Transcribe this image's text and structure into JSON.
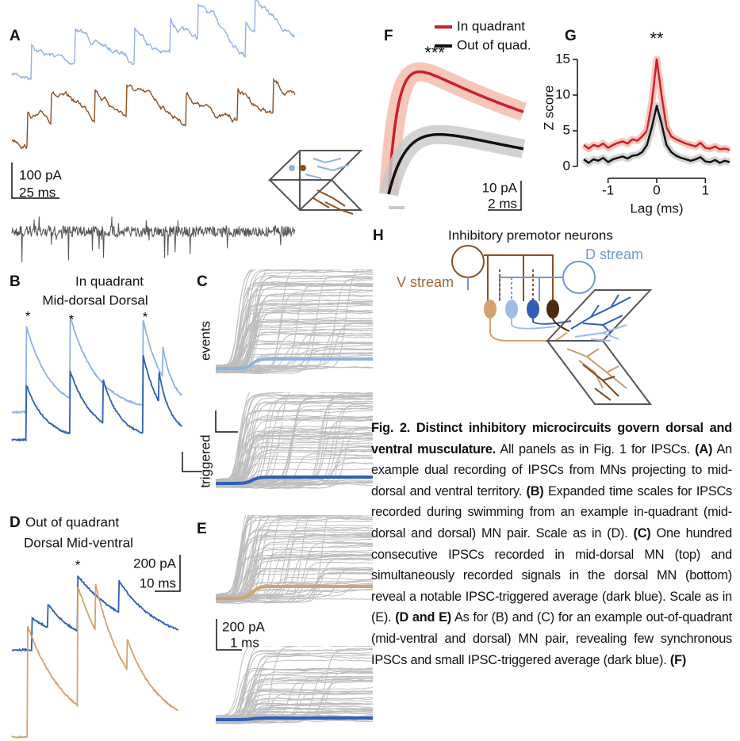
{
  "panel_labels": [
    "A",
    "B",
    "C",
    "D",
    "E",
    "F",
    "G",
    "H"
  ],
  "panel_a": {
    "scale_y": "100 pA",
    "scale_x": "25 ms"
  },
  "panel_b": {
    "title": "In quadrant",
    "subtitle": "Mid-dorsal Dorsal",
    "markers": [
      "*",
      "*",
      "*"
    ]
  },
  "panel_c": {
    "top_label": "events",
    "bottom_label": "triggered"
  },
  "panel_d": {
    "title": "Out of quadrant",
    "subtitle": "Dorsal Mid-ventral",
    "marker": "*",
    "scale_y": "200 pA",
    "scale_x": "10 ms"
  },
  "panel_e": {
    "scale_y": "200 pA",
    "scale_x": "1 ms"
  },
  "panel_f": {
    "significance": "***",
    "scale_y": "10 pA",
    "scale_x": "2 ms"
  },
  "panel_h": {
    "title": "Inhibitory premotor neurons",
    "d_stream": "D stream",
    "v_stream": "V stream"
  },
  "chart_data": {
    "type": "line",
    "significance": "**",
    "y_label": "Z score",
    "x_label": "Lag (ms)",
    "x": [
      -1.5,
      -1.4,
      -1.3,
      -1.2,
      -1.1,
      -1.0,
      -0.9,
      -0.8,
      -0.7,
      -0.6,
      -0.5,
      -0.4,
      -0.3,
      -0.2,
      -0.1,
      0.0,
      0.1,
      0.2,
      0.3,
      0.4,
      0.5,
      0.6,
      0.7,
      0.8,
      0.9,
      1.0,
      1.1,
      1.2,
      1.3,
      1.4,
      1.5
    ],
    "xlim": [
      -1.5,
      1.5
    ],
    "ylim": [
      -0.5,
      16.5
    ],
    "xticks": [
      -1,
      0,
      1
    ],
    "yticks": [
      0,
      5,
      10,
      15
    ],
    "series": [
      {
        "name": "In quadrant",
        "color": "#c8202f",
        "band_color": "#f4b9a8",
        "values": [
          3,
          2.5,
          3,
          2.8,
          3.2,
          2.6,
          3,
          3.3,
          3.5,
          3.2,
          3.8,
          3.6,
          4.2,
          5,
          9,
          15,
          10,
          5.5,
          4.2,
          3.8,
          3.5,
          3.2,
          3,
          2.8,
          3.3,
          2.6,
          2.5,
          2.8,
          2.4,
          2.5,
          2.3
        ]
      },
      {
        "name": "Out of quad.",
        "color": "#111111",
        "band_color": "#c8c8c8",
        "values": [
          1,
          0.5,
          1,
          0.8,
          1.2,
          0.6,
          1,
          1.2,
          1.4,
          1.1,
          1.5,
          1.6,
          2,
          3,
          5.5,
          8.5,
          6,
          3,
          2,
          1.5,
          1.2,
          1,
          0.8,
          1,
          1.3,
          0.7,
          0.6,
          0.9,
          0.5,
          0.8,
          0.6
        ]
      }
    ]
  },
  "caption": {
    "title": "Fig. 2. Distinct inhibitory microcircuits govern dorsal and ventral musculature.",
    "body": [
      {
        "text": " All panels as in Fig. 1 for IPSCs. ",
        "bold": false
      },
      {
        "text": "(A)",
        "bold": true
      },
      {
        "text": " An example dual recording of IPSCs from MNs projecting to mid-dorsal and ventral territory. ",
        "bold": false
      },
      {
        "text": "(B)",
        "bold": true
      },
      {
        "text": " Expanded time scales for IPSCs recorded during swimming from an example in-quadrant (mid-dorsal and dorsal) MN pair. Scale as in (D). ",
        "bold": false
      },
      {
        "text": "(C)",
        "bold": true
      },
      {
        "text": " One hundred consecutive IPSCs recorded in mid-dorsal MN (top) and simultaneously recorded signals in the dorsal MN (bottom) reveal a notable IPSC-triggered average (dark blue). Scale as in (E). ",
        "bold": false
      },
      {
        "text": "(D and E)",
        "bold": true
      },
      {
        "text": " As for (B) and (C) for an example out-of-quadrant (mid-ventral and dorsal) MN pair, revealing few synchronous IPSCs and small IPSC-triggered average (dark blue). ",
        "bold": false
      },
      {
        "text": "(F)",
        "bold": true
      }
    ]
  }
}
